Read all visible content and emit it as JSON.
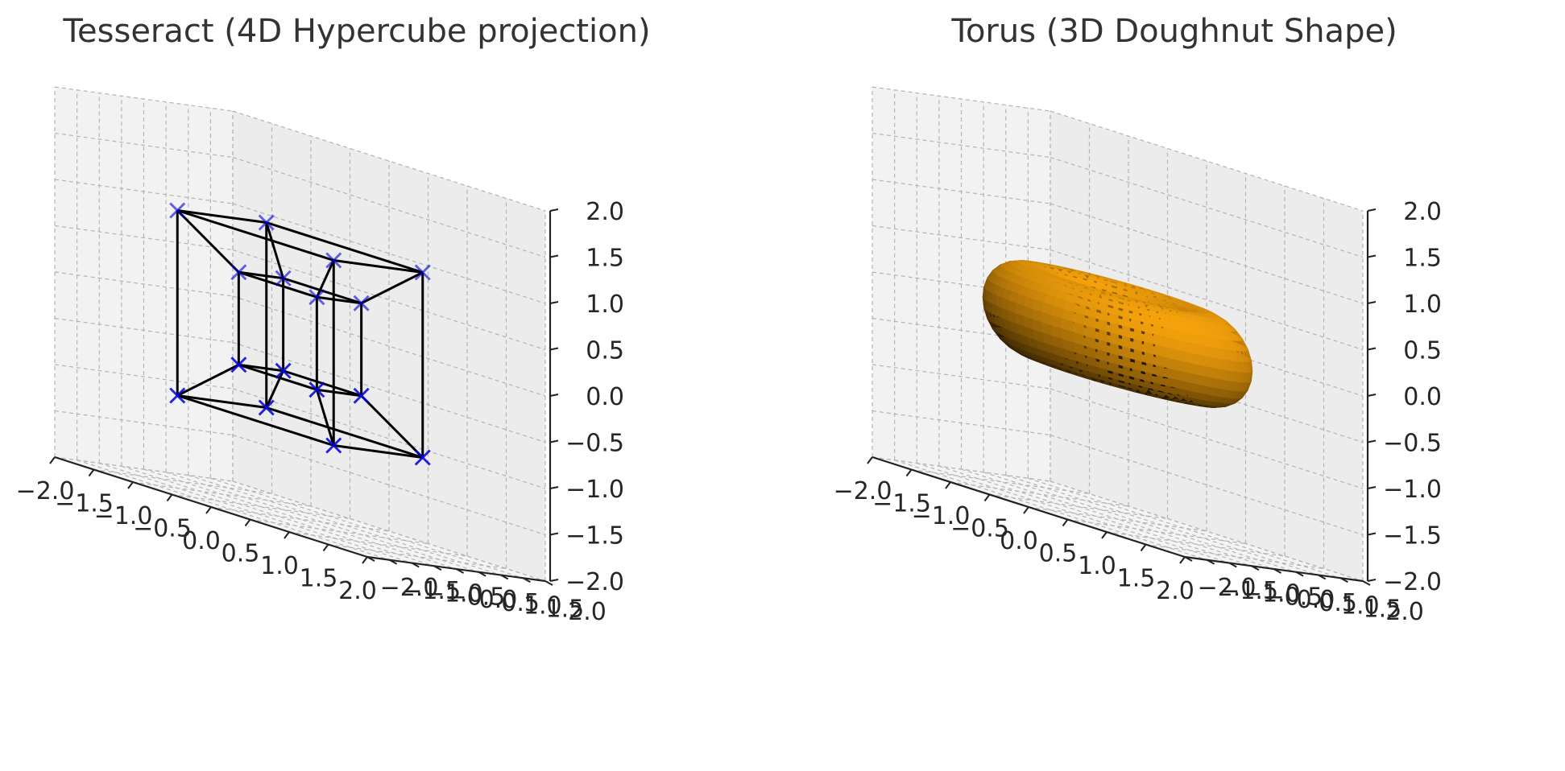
{
  "chart_data": [
    {
      "type": "scatter",
      "title": "Tesseract (4D Hypercube projection)",
      "xlabel": "",
      "ylabel": "",
      "zlabel": "",
      "xlim": [
        -2,
        2
      ],
      "ylim": [
        -2,
        2
      ],
      "zlim": [
        -2,
        2
      ],
      "x_ticks": [
        "−2.0",
        "−1.5",
        "−1.0",
        "−0.5",
        "0.0",
        "0.5",
        "1.0",
        "1.5",
        "2.0"
      ],
      "y_ticks": [
        "−2.0",
        "−1.5",
        "−1.0",
        "−0.5",
        "0.0",
        "0.5",
        "1.0",
        "1.5",
        "2.0"
      ],
      "z_ticks": [
        "−2.0",
        "−1.5",
        "−1.0",
        "−0.5",
        "0.0",
        "0.5",
        "1.0",
        "1.5",
        "2.0"
      ],
      "grid": true,
      "marker": "x",
      "marker_color": "#0000dd",
      "edge_color": "#000000",
      "vertices": [
        [
          -1,
          -1,
          -1
        ],
        [
          1,
          -1,
          -1
        ],
        [
          -1,
          1,
          -1
        ],
        [
          1,
          1,
          -1
        ],
        [
          -1,
          -1,
          1
        ],
        [
          1,
          -1,
          1
        ],
        [
          -1,
          1,
          1
        ],
        [
          1,
          1,
          1
        ],
        [
          -0.5,
          -0.5,
          -0.5
        ],
        [
          0.5,
          -0.5,
          -0.5
        ],
        [
          -0.5,
          0.5,
          -0.5
        ],
        [
          0.5,
          0.5,
          -0.5
        ],
        [
          -0.5,
          -0.5,
          0.5
        ],
        [
          0.5,
          -0.5,
          0.5
        ],
        [
          -0.5,
          0.5,
          0.5
        ],
        [
          0.5,
          0.5,
          0.5
        ]
      ],
      "edges": [
        [
          0,
          1
        ],
        [
          2,
          3
        ],
        [
          4,
          5
        ],
        [
          6,
          7
        ],
        [
          0,
          2
        ],
        [
          1,
          3
        ],
        [
          4,
          6
        ],
        [
          5,
          7
        ],
        [
          0,
          4
        ],
        [
          1,
          5
        ],
        [
          2,
          6
        ],
        [
          3,
          7
        ],
        [
          8,
          9
        ],
        [
          10,
          11
        ],
        [
          12,
          13
        ],
        [
          14,
          15
        ],
        [
          8,
          10
        ],
        [
          9,
          11
        ],
        [
          12,
          14
        ],
        [
          13,
          15
        ],
        [
          8,
          12
        ],
        [
          9,
          13
        ],
        [
          10,
          14
        ],
        [
          11,
          15
        ],
        [
          0,
          8
        ],
        [
          1,
          9
        ],
        [
          2,
          10
        ],
        [
          3,
          11
        ],
        [
          4,
          12
        ],
        [
          5,
          13
        ],
        [
          6,
          14
        ],
        [
          7,
          15
        ]
      ]
    },
    {
      "type": "surface",
      "title": "Torus (3D Doughnut Shape)",
      "xlabel": "",
      "ylabel": "",
      "zlabel": "",
      "xlim": [
        -2,
        2
      ],
      "ylim": [
        -2,
        2
      ],
      "zlim": [
        -2,
        2
      ],
      "x_ticks": [
        "−2.0",
        "−1.5",
        "−1.0",
        "−0.5",
        "0.0",
        "0.5",
        "1.0",
        "1.5",
        "2.0"
      ],
      "y_ticks": [
        "−2.0",
        "−1.5",
        "−1.0",
        "−0.5",
        "0.0",
        "0.5",
        "1.0",
        "1.5",
        "2.0"
      ],
      "z_ticks": [
        "−2.0",
        "−1.5",
        "−1.0",
        "−0.5",
        "0.0",
        "0.5",
        "1.0",
        "1.5",
        "2.0"
      ],
      "grid": true,
      "major_radius": 1,
      "minor_radius": 0.5,
      "surface_color": "#f5a20c"
    }
  ]
}
